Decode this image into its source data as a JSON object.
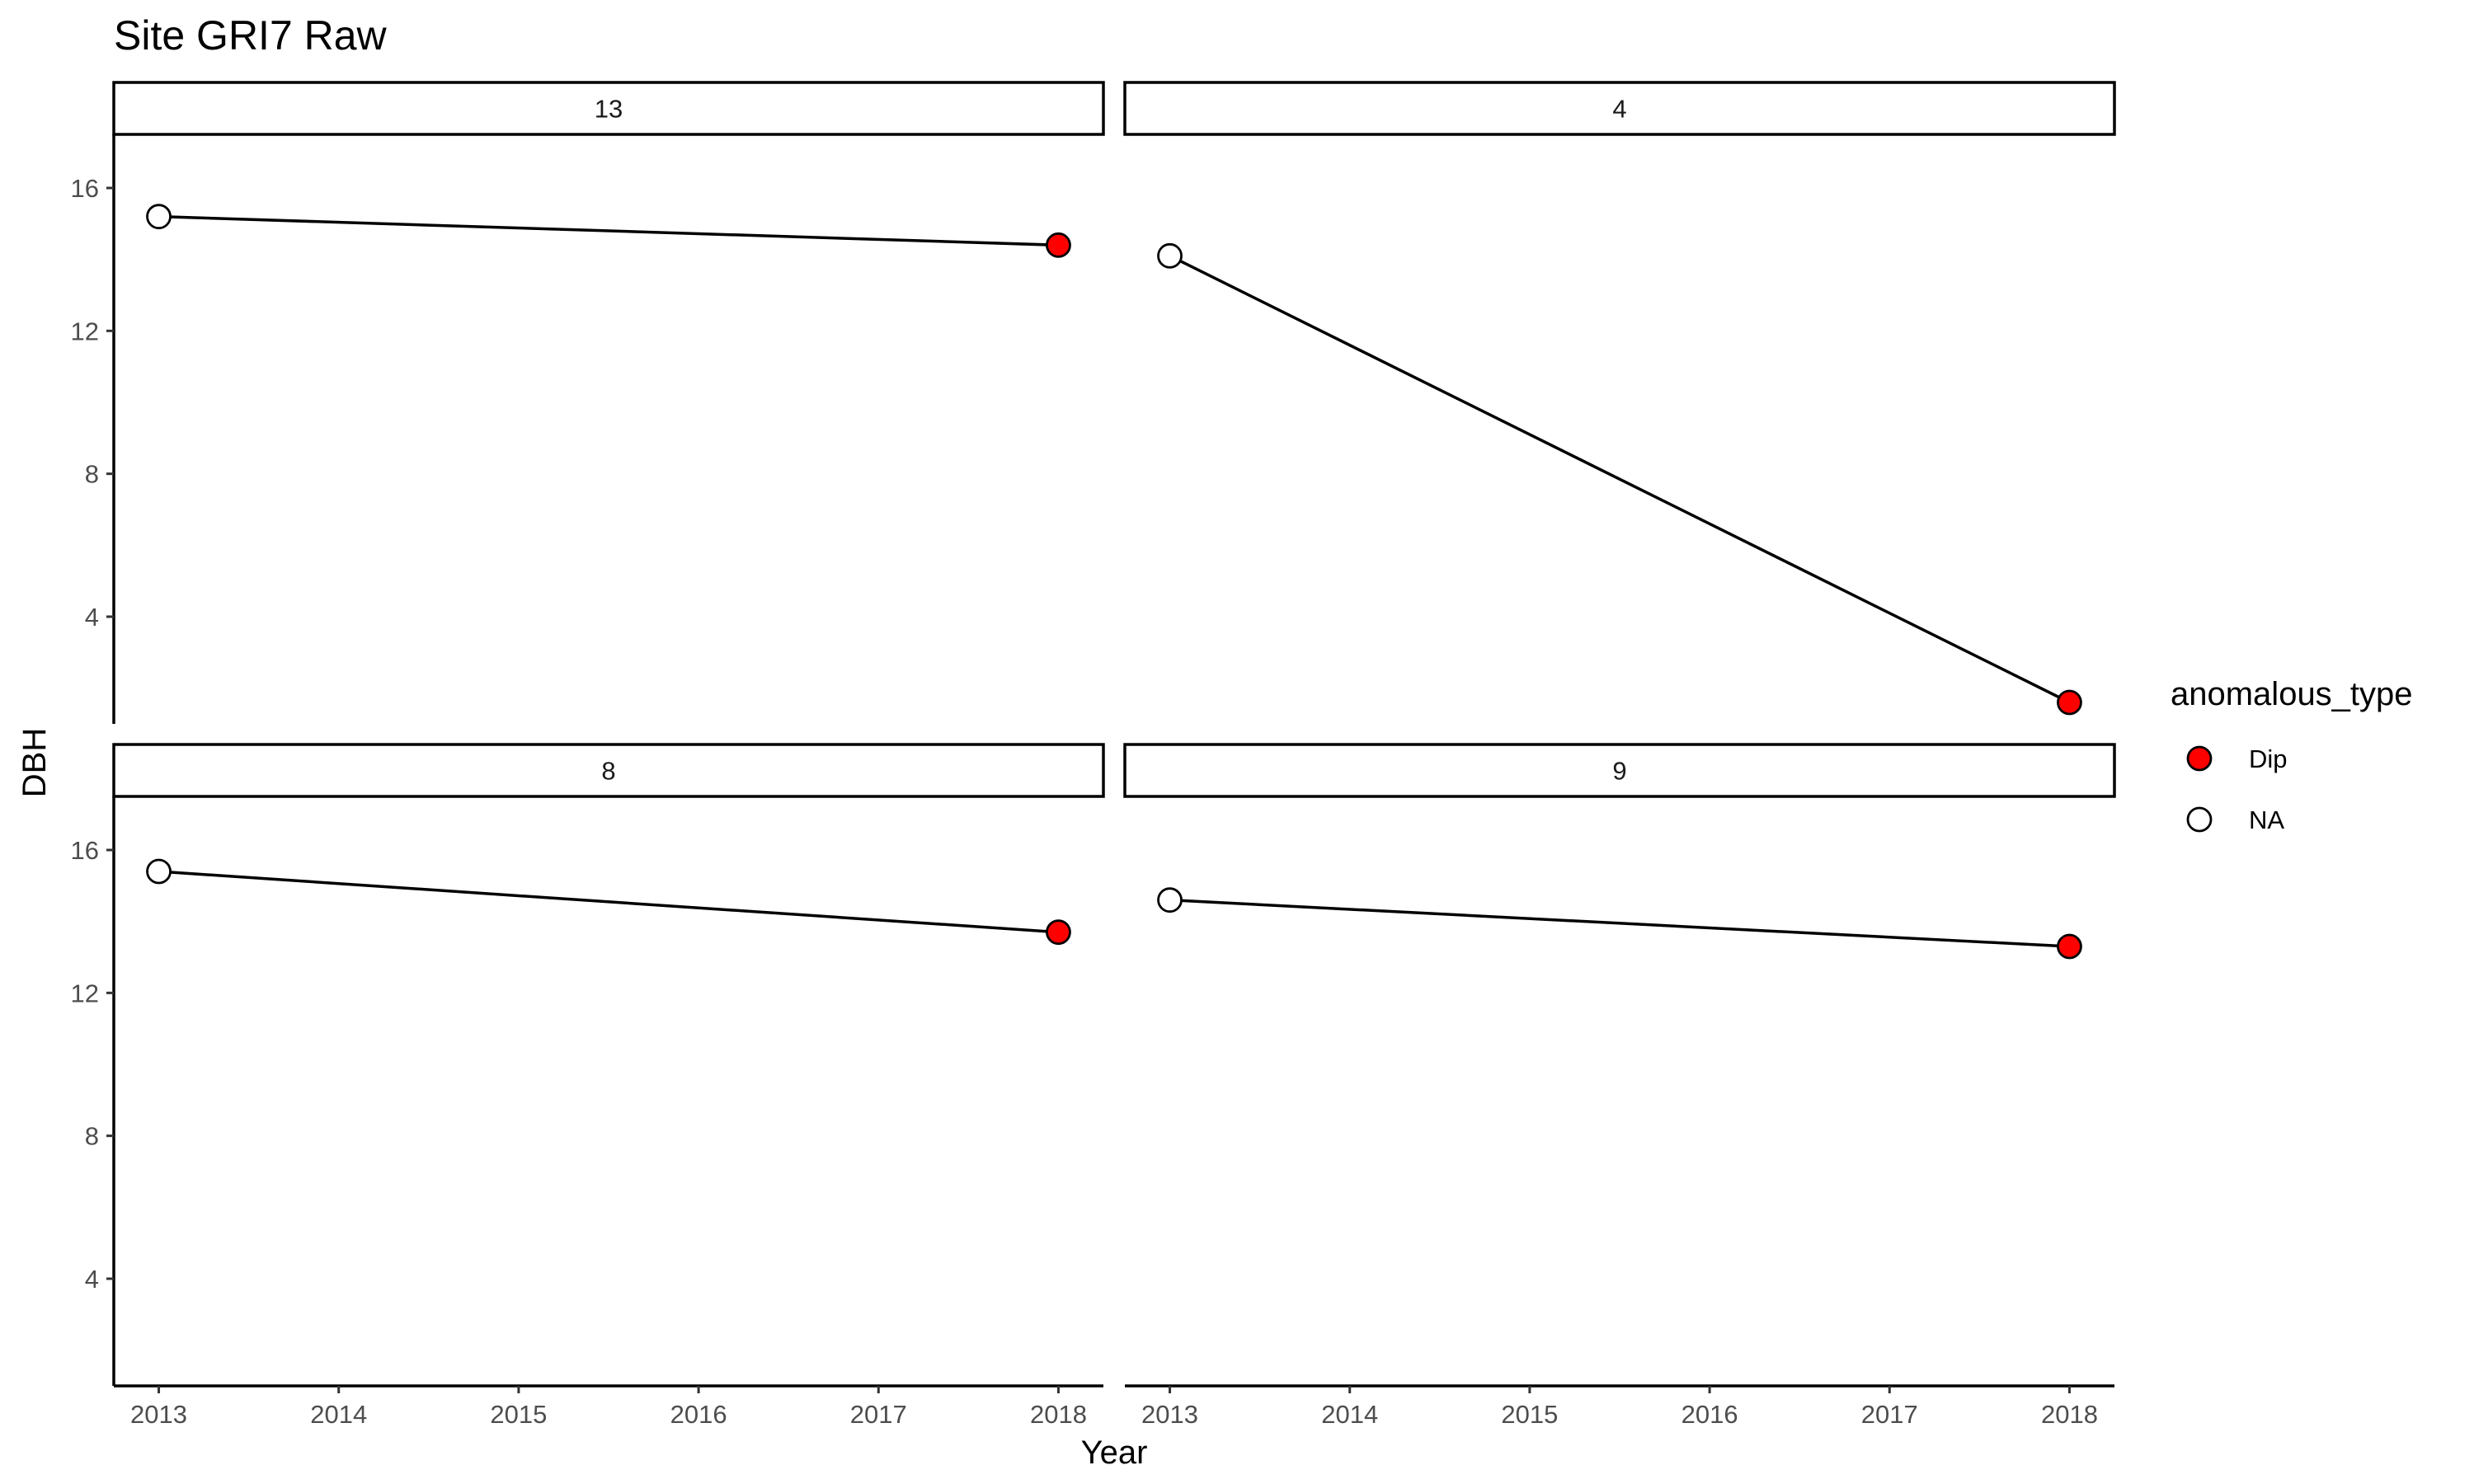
{
  "chart_data": {
    "type": "line",
    "title": "Site GRI7 Raw",
    "xlabel": "Year",
    "ylabel": "DBH",
    "x_ticks": [
      2013,
      2014,
      2015,
      2016,
      2017,
      2018
    ],
    "y_ticks": [
      4,
      8,
      12,
      16
    ],
    "xlim": [
      2012.75,
      2018.25
    ],
    "ylim": [
      1.0,
      17.5
    ],
    "grid": false,
    "facet_layout": "2x2",
    "facets": [
      {
        "label": "13",
        "points": [
          {
            "x": 2013,
            "y": 15.2,
            "anomalous_type": "NA"
          },
          {
            "x": 2018,
            "y": 14.4,
            "anomalous_type": "Dip"
          }
        ]
      },
      {
        "label": "4",
        "points": [
          {
            "x": 2013,
            "y": 14.1,
            "anomalous_type": "NA"
          },
          {
            "x": 2018,
            "y": 1.6,
            "anomalous_type": "Dip"
          }
        ]
      },
      {
        "label": "8",
        "points": [
          {
            "x": 2013,
            "y": 15.4,
            "anomalous_type": "NA"
          },
          {
            "x": 2018,
            "y": 13.7,
            "anomalous_type": "Dip"
          }
        ]
      },
      {
        "label": "9",
        "points": [
          {
            "x": 2013,
            "y": 14.6,
            "anomalous_type": "NA"
          },
          {
            "x": 2018,
            "y": 13.3,
            "anomalous_type": "Dip"
          }
        ]
      }
    ],
    "legend": {
      "title": "anomalous_type",
      "position": "right",
      "items": [
        {
          "label": "Dip",
          "fill": "#ff0000"
        },
        {
          "label": "NA",
          "fill": "#ffffff"
        }
      ]
    },
    "colors": {
      "dip": "#ff0000",
      "na": "#ffffff",
      "stroke": "#000000"
    }
  }
}
